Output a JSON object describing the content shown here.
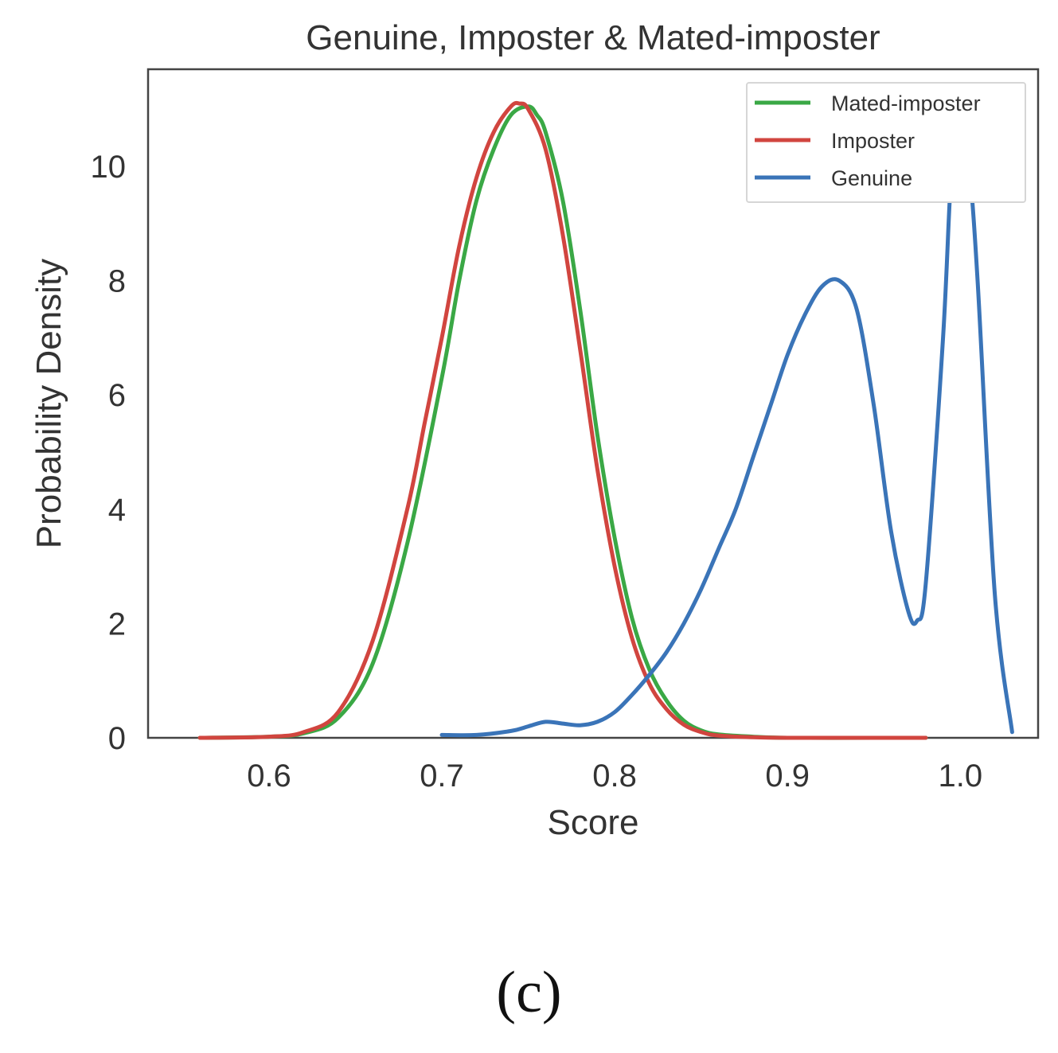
{
  "caption": "(c)",
  "colors": {
    "genuine": "#3a74b8",
    "imposter": "#d1453f",
    "mated_imposter": "#3aa845",
    "axes": "#333333"
  },
  "chart_data": {
    "type": "line",
    "title": "Genuine, Imposter & Mated-imposter",
    "xlabel": "Score",
    "ylabel": "Probability Density",
    "xlim": [
      0.53,
      1.045
    ],
    "ylim": [
      0,
      11.7
    ],
    "xticks": [
      "0.6",
      "0.7",
      "0.8",
      "0.9",
      "1.0"
    ],
    "yticks": [
      "0",
      "2",
      "4",
      "6",
      "8",
      "10"
    ],
    "grid": false,
    "legend_position": "top-right",
    "series": [
      {
        "name": "Mated-imposter",
        "color": "#3aa845",
        "x": [
          0.56,
          0.6,
          0.62,
          0.64,
          0.66,
          0.68,
          0.7,
          0.71,
          0.72,
          0.73,
          0.74,
          0.75,
          0.755,
          0.76,
          0.77,
          0.78,
          0.79,
          0.8,
          0.81,
          0.82,
          0.83,
          0.84,
          0.85,
          0.86,
          0.88,
          0.9,
          0.95,
          0.98
        ],
        "y": [
          0.0,
          0.02,
          0.08,
          0.35,
          1.3,
          3.4,
          6.3,
          8.0,
          9.4,
          10.3,
          10.9,
          11.05,
          10.9,
          10.6,
          9.4,
          7.5,
          5.3,
          3.5,
          2.1,
          1.2,
          0.65,
          0.3,
          0.13,
          0.06,
          0.02,
          0.0,
          0.0,
          0.0
        ]
      },
      {
        "name": "Imposter",
        "color": "#d1453f",
        "x": [
          0.56,
          0.6,
          0.62,
          0.64,
          0.66,
          0.68,
          0.69,
          0.7,
          0.71,
          0.72,
          0.73,
          0.74,
          0.745,
          0.75,
          0.76,
          0.77,
          0.78,
          0.79,
          0.8,
          0.81,
          0.82,
          0.83,
          0.84,
          0.85,
          0.86,
          0.88,
          0.9,
          0.95,
          0.98
        ],
        "y": [
          0.0,
          0.02,
          0.1,
          0.45,
          1.7,
          4.0,
          5.5,
          7.0,
          8.6,
          9.8,
          10.6,
          11.05,
          11.1,
          11.0,
          10.3,
          8.8,
          6.8,
          4.7,
          3.0,
          1.75,
          0.95,
          0.5,
          0.23,
          0.1,
          0.04,
          0.01,
          0.0,
          0.0,
          0.0
        ]
      },
      {
        "name": "Genuine",
        "color": "#3a74b8",
        "x": [
          0.7,
          0.72,
          0.74,
          0.75,
          0.76,
          0.77,
          0.78,
          0.79,
          0.8,
          0.81,
          0.82,
          0.83,
          0.84,
          0.85,
          0.86,
          0.87,
          0.88,
          0.89,
          0.9,
          0.91,
          0.92,
          0.93,
          0.94,
          0.95,
          0.96,
          0.97,
          0.975,
          0.98,
          0.99,
          0.995,
          1.0,
          1.005,
          1.01,
          1.02,
          1.03
        ],
        "y": [
          0.05,
          0.05,
          0.12,
          0.2,
          0.28,
          0.25,
          0.22,
          0.28,
          0.45,
          0.75,
          1.1,
          1.5,
          2.0,
          2.6,
          3.3,
          4.0,
          4.9,
          5.8,
          6.7,
          7.4,
          7.9,
          8.0,
          7.5,
          5.8,
          3.6,
          2.2,
          2.05,
          2.7,
          7.0,
          10.0,
          10.8,
          10.0,
          8.0,
          2.5,
          0.1
        ]
      }
    ]
  }
}
